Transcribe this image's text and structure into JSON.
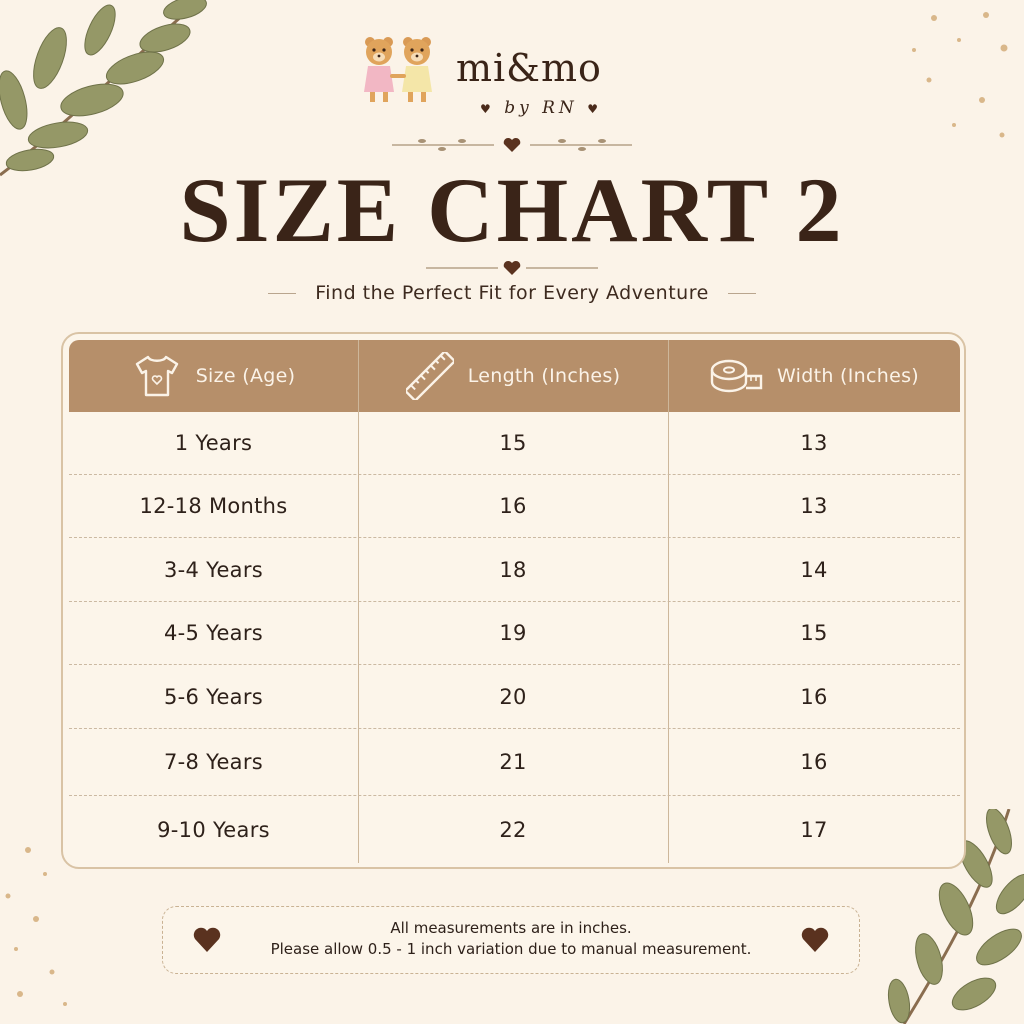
{
  "brand": {
    "name": "mi&mo",
    "sub": "by RN"
  },
  "title": "SIZE CHART 2",
  "subtitle": "Find the Perfect Fit for Every Adventure",
  "table": {
    "headers": [
      {
        "label": "Size (Age)",
        "icon": "tshirt-icon"
      },
      {
        "label": "Length (Inches)",
        "icon": "ruler-icon"
      },
      {
        "label": "Width (Inches)",
        "icon": "measuring-tape-icon"
      }
    ],
    "rows": [
      {
        "size": "1 Years",
        "length": "15",
        "width": "13"
      },
      {
        "size": "12-18 Months",
        "length": "16",
        "width": "13"
      },
      {
        "size": "3-4 Years",
        "length": "18",
        "width": "14"
      },
      {
        "size": "4-5 Years",
        "length": "19",
        "width": "15"
      },
      {
        "size": "5-6 Years",
        "length": "20",
        "width": "16"
      },
      {
        "size": "7-8 Years",
        "length": "21",
        "width": "16"
      },
      {
        "size": "9-10 Years",
        "length": "22",
        "width": "17"
      }
    ]
  },
  "note": {
    "line1": "All measurements are in inches.",
    "line2": "Please allow 0.5 - 1 inch variation due to manual measurement."
  },
  "colors": {
    "background": "#fbf3e8",
    "header": "#b68f6a",
    "text": "#3a2418",
    "leaf": "#8f9366",
    "heart": "#5a321f"
  }
}
